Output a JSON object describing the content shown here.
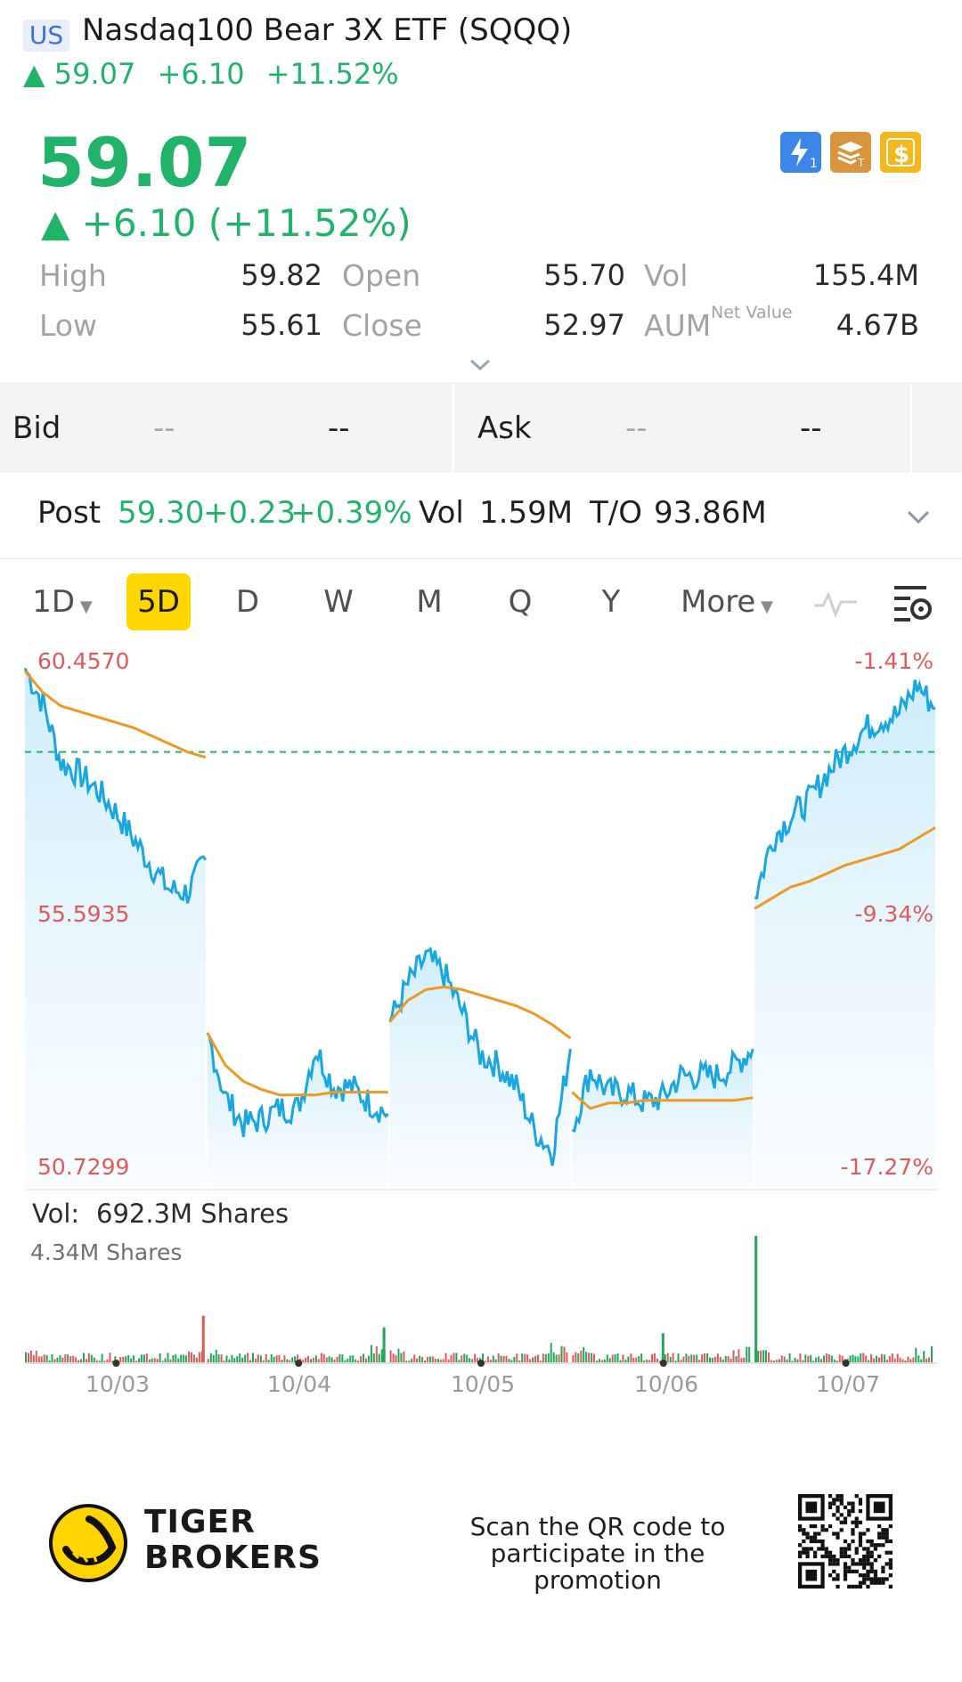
{
  "header": {
    "market": "US",
    "title": "Nasdaq100 Bear 3X ETF (SQQQ)",
    "arrow": "▲",
    "price": "59.07",
    "change": "+6.10",
    "change_pct": "+11.52%"
  },
  "quote": {
    "price": "59.07",
    "change_line": "▲ +6.10 (+11.52%)",
    "icons": [
      "lightning-1-icon",
      "stack-t-icon",
      "dollar-icon"
    ],
    "stats": {
      "high_label": "High",
      "high": "59.82",
      "open_label": "Open",
      "open": "55.70",
      "vol_label": "Vol",
      "vol": "155.4M",
      "low_label": "Low",
      "low": "55.61",
      "close_label": "Close",
      "close": "52.97",
      "aum_label": "AUM",
      "aum_note": "Net Value",
      "aum": "4.67B"
    }
  },
  "bidask": {
    "bid_label": "Bid",
    "bid_price": "--",
    "bid_size": "--",
    "ask_label": "Ask",
    "ask_price": "--",
    "ask_size": "--"
  },
  "post": {
    "label": "Post",
    "price": "59.30",
    "change": "+0.23",
    "change_pct": "+0.39%",
    "vol_label": "Vol",
    "vol": "1.59M",
    "to_label": "T/O",
    "to": "93.86M"
  },
  "tabs": {
    "t1d": "1D",
    "t5d": "5D",
    "d": "D",
    "w": "W",
    "m": "M",
    "q": "Q",
    "y": "Y",
    "more": "More",
    "active": "5D"
  },
  "chart": {
    "price_top": "60.4570",
    "price_mid": "55.5935",
    "price_bottom": "50.7299",
    "pct_top": "-1.41%",
    "pct_mid": "-9.34%",
    "pct_bottom": "-17.27%",
    "vol_label": "Vol:",
    "vol_total": "692.3M Shares",
    "vol_max": "4.34M Shares",
    "dates": [
      "10/03",
      "10/04",
      "10/05",
      "10/06",
      "10/07"
    ],
    "colors": {
      "price": "#1aa6e0",
      "avg": "#ee9922",
      "up": "#23a55a",
      "down": "#e05a5a",
      "ref": "#21b36a"
    }
  },
  "chart_data": {
    "type": "line",
    "ylim": [
      50.7299,
      60.457
    ],
    "x": [
      "10/03",
      "10/04",
      "10/05",
      "10/06",
      "10/07"
    ],
    "series": [
      {
        "name": "price",
        "days": [
          [
            60.35,
            59.7,
            58.6,
            58.4,
            58.1,
            57.7,
            57.2,
            56.7,
            56.25,
            56.2,
            56.8
          ],
          [
            53.6,
            52.4,
            51.9,
            52.0,
            52.2,
            52.2,
            53.3,
            52.6,
            52.6,
            52.3,
            52.1
          ],
          [
            53.8,
            54.5,
            55.0,
            54.7,
            54.0,
            53.2,
            53.0,
            52.6,
            51.8,
            51.4,
            53.3
          ],
          [
            51.8,
            52.9,
            52.5,
            52.5,
            52.3,
            52.4,
            52.8,
            52.8,
            52.8,
            53.0,
            53.3
          ],
          [
            56.1,
            57.2,
            57.6,
            57.9,
            58.4,
            58.8,
            59.2,
            59.4,
            59.5,
            60.05,
            59.6
          ]
        ]
      },
      {
        "name": "average",
        "days": [
          [
            60.3,
            59.9,
            59.65,
            59.55,
            59.45,
            59.35,
            59.25,
            59.1,
            58.95,
            58.8,
            58.7
          ],
          [
            53.6,
            53.0,
            52.7,
            52.55,
            52.45,
            52.45,
            52.45,
            52.5,
            52.5,
            52.5,
            52.5
          ],
          [
            53.8,
            54.2,
            54.4,
            54.45,
            54.4,
            54.3,
            54.2,
            54.1,
            53.95,
            53.75,
            53.5
          ],
          [
            52.5,
            52.2,
            52.3,
            52.3,
            52.35,
            52.35,
            52.35,
            52.35,
            52.35,
            52.35,
            52.4
          ],
          [
            55.9,
            56.1,
            56.3,
            56.4,
            56.55,
            56.7,
            56.8,
            56.9,
            57.0,
            57.2,
            57.4
          ]
        ]
      }
    ],
    "reference_close": 58.8,
    "volume_max": 4.34,
    "volume_spikes": [
      {
        "day": 0,
        "pos": 0.99,
        "value": 1.6,
        "dir": "down"
      },
      {
        "day": 1,
        "pos": 0.98,
        "value": 1.2,
        "dir": "up"
      },
      {
        "day": 3,
        "pos": 0.5,
        "value": 1.0,
        "dir": "up"
      },
      {
        "day": 4,
        "pos": 0.0,
        "value": 4.34,
        "dir": "up"
      }
    ]
  },
  "footer": {
    "brand_line1": "TIGER",
    "brand_line2": "BROKERS",
    "promo_line1": "Scan the QR code to",
    "promo_line2": "participate in the promotion"
  }
}
